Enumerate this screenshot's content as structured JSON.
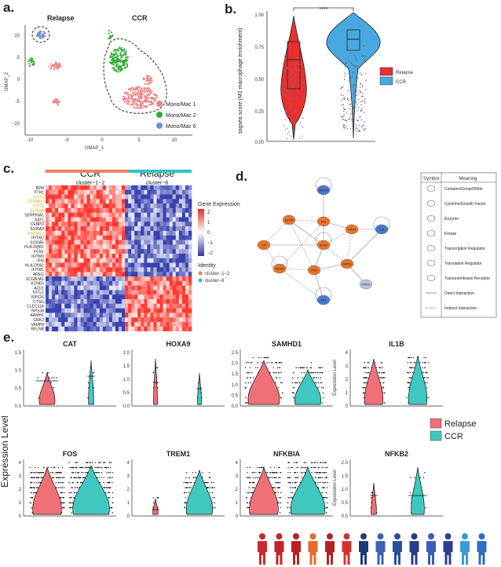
{
  "panels": {
    "a": "a.",
    "b": "b.",
    "c": "c.",
    "d": "d.",
    "e": "e."
  },
  "panel_a": {
    "group_labels": [
      "Relapse",
      "CCR"
    ],
    "xlabel": "UMAP_1",
    "ylabel": "UMAP_2",
    "legend": [
      {
        "name": "Mono/Mac 1",
        "color": "#f08080"
      },
      {
        "name": "Mono/Mac 2",
        "color": "#33aa33"
      },
      {
        "name": "Mono/Mac 6",
        "color": "#7090d0"
      }
    ],
    "x_ticks": [
      "-10",
      "-5",
      "0",
      "5",
      "10"
    ],
    "y_ticks": [
      "10",
      "5",
      "0",
      "-5",
      "-10"
    ]
  },
  "panel_b": {
    "ylabel": "ssgsea score (M1 macrophage enrichment)",
    "y_ticks": [
      "1.00",
      "0.75",
      "0.50",
      "0.25",
      "0.00"
    ],
    "significance": "****",
    "legend": [
      {
        "name": "Relapse",
        "color": "#e83030"
      },
      {
        "name": "CCR",
        "color": "#4aa8e0"
      }
    ]
  },
  "panel_c": {
    "header_left": "CCR",
    "header_left_sub": "cluster−1−2",
    "header_right": "Relapse",
    "header_right_sub": "cluster−6",
    "genes": [
      "B2M",
      "FTH1",
      "CST3",
      "S100A11",
      "CTSS",
      "S100A8",
      "SERPINA1",
      "SAT1",
      "CEBPD",
      "S100A9",
      "S100A12",
      "IFITM2",
      "S100A6",
      "HLA-DQB1",
      "FCN1",
      "IFITM3",
      "IFI6",
      "HLA-DPA1",
      "IFITM1",
      "AREG",
      "SCGB3A1",
      "KCNE5",
      "AZU1",
      "TXTL1",
      "RPS26",
      "CTSG",
      "CLEC11A",
      "RPS38",
      "ARMH1",
      "GRK2",
      "VAMP8",
      "RFLNB"
    ],
    "highlighted_genes": [
      "CST3",
      "S100A11",
      "CTSS",
      "S100A8",
      "S100A12"
    ],
    "legend_title": "Gene Expression",
    "legend_ticks": [
      "2",
      "1",
      "0",
      "−1",
      "−2"
    ],
    "identity_title": "Identity",
    "identity_items": [
      {
        "name": "cluster−1−2",
        "color": "#e8845a"
      },
      {
        "name": "cluster−6",
        "color": "#2fc4c4"
      }
    ]
  },
  "panel_d": {
    "nodes": [
      "SAMHD1",
      "HOXA9",
      "FOS",
      "TREM1",
      "IL1B",
      "CAT",
      "NFKB2",
      "NFKBIA",
      "STAT1",
      "MAPK8",
      "PRKCB",
      "IRF1"
    ],
    "legend_headers": [
      "Symbol",
      "Meaning"
    ],
    "legend_rows": [
      "Complex/Group/Other",
      "Cytokine/Growth Factor",
      "Enzyme",
      "Kinase",
      "Transcription Regulator",
      "Translation Regulator",
      "Transmembrane Receptor",
      "Direct Interaction",
      "Indirect Interaction"
    ]
  },
  "panel_e": {
    "ylabel": "Expression Level",
    "violins_top": [
      {
        "gene": "CAT",
        "ticks": [
          "1.5",
          "1.0",
          "0.5",
          "0.0"
        ],
        "ylabel": ""
      },
      {
        "gene": "HOXA9",
        "ticks": [
          "2.0",
          "1.5",
          "1.0",
          "0.5",
          "0.0"
        ],
        "ylabel": ""
      },
      {
        "gene": "SAMHD1",
        "ticks": [
          "2.5",
          "2.0",
          "1.5",
          "1.0",
          "0.5",
          "0.0"
        ],
        "ylabel": ""
      },
      {
        "gene": "IL1B",
        "ticks": [
          "4",
          "3",
          "2",
          "1",
          "0"
        ],
        "ylabel": "Expression Level"
      }
    ],
    "violins_bottom": [
      {
        "gene": "FOS",
        "ticks": [
          "4",
          "3",
          "2",
          "1",
          "0"
        ],
        "ylabel": ""
      },
      {
        "gene": "TREM1",
        "ticks": [
          "4",
          "3",
          "2",
          "1",
          "0"
        ],
        "ylabel": ""
      },
      {
        "gene": "NFKBIA",
        "ticks": [
          "4",
          "3",
          "2",
          "1",
          "0"
        ],
        "ylabel": ""
      },
      {
        "gene": "NFKB2",
        "ticks": [
          "2.0",
          "1.5",
          "1.0",
          "0.5",
          "0.0"
        ],
        "ylabel": "Expression Level"
      }
    ],
    "legend": [
      {
        "name": "Relapse",
        "color": "#f07078"
      },
      {
        "name": "CCR",
        "color": "#40c8c0"
      }
    ]
  },
  "people_colors": [
    "#cc2a2a",
    "#c02626",
    "#b82222",
    "#e66a2a",
    "#b22424",
    "#d53030",
    "#1f3a7a",
    "#3a62b5",
    "#2a4f9c",
    "#2a3c86",
    "#3a5db8",
    "#2b3f8f",
    "#3a9bd6",
    "#2d6fc0"
  ]
}
